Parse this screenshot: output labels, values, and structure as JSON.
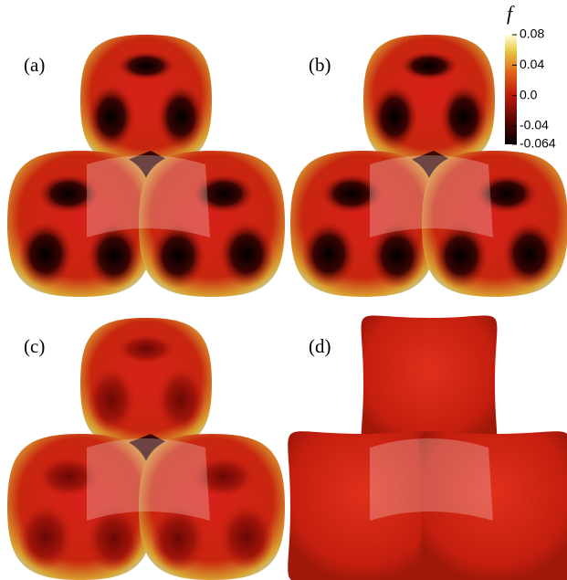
{
  "panels": [
    {
      "label": "(a)"
    },
    {
      "label": "(b)"
    },
    {
      "label": "(c)"
    },
    {
      "label": "(d)"
    }
  ],
  "colorbar": {
    "label": "f",
    "lim": [
      -0.064,
      0.08
    ],
    "ticks": [
      0.08,
      0.04,
      {
        "value": 0,
        "label": "0.0"
      },
      -0.04,
      -0.064
    ]
  }
}
